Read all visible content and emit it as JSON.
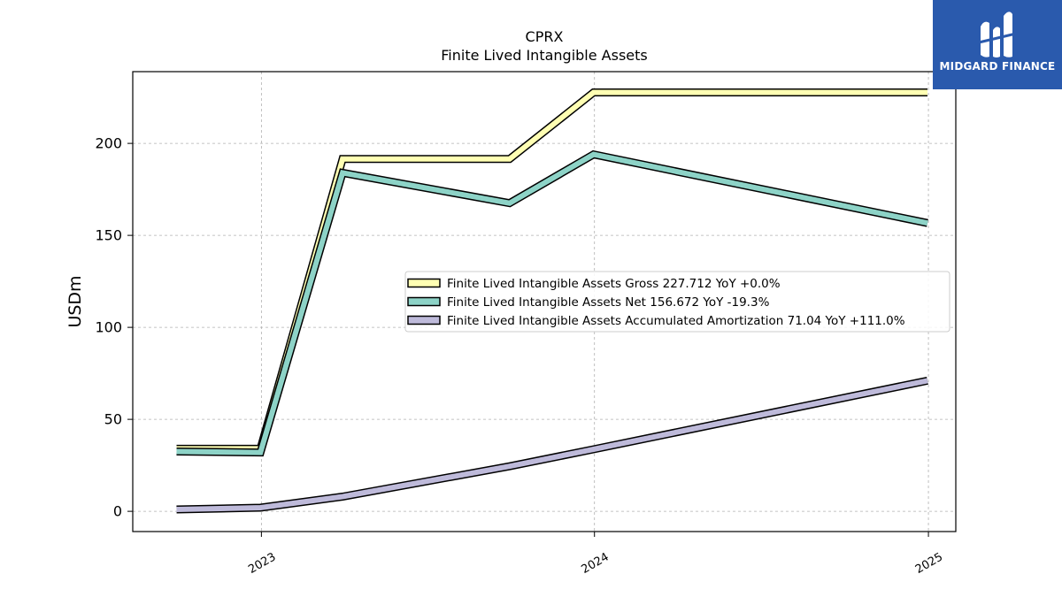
{
  "chart_data": {
    "type": "line",
    "title": "CPRX",
    "subtitle": "Finite Lived Intangible Assets",
    "ylabel": "USDm",
    "xlabel": "",
    "ylim": [
      -11,
      239
    ],
    "xlim": [
      "2022-08-13",
      "2025-01-31"
    ],
    "yticks": [
      0,
      50,
      100,
      150,
      200
    ],
    "xticks": [
      {
        "date": "2023-01-01",
        "label": "2023"
      },
      {
        "date": "2024-01-01",
        "label": "2024"
      },
      {
        "date": "2025-01-01",
        "label": "2025"
      }
    ],
    "grid": true,
    "legend_position": "center-right",
    "x": [
      "2022-09-30",
      "2022-12-31",
      "2023-03-31",
      "2023-09-30",
      "2023-12-31",
      "2024-12-31"
    ],
    "series": [
      {
        "name": "Finite Lived Intangible Assets Gross  227.712 YoY +0.0%",
        "color": "#ffffb3",
        "values": [
          34.0,
          34.0,
          191.5,
          191.5,
          227.712,
          227.712
        ]
      },
      {
        "name": "Finite Lived Intangible Assets Net  156.672 YoY -19.3%",
        "color": "#8dd3c7",
        "values": [
          32.5,
          32.0,
          184.0,
          167.5,
          194.0,
          156.672
        ]
      },
      {
        "name": "Finite Lived Intangible Assets Accumulated Amortization  71.04 YoY +111.0%",
        "color": "#bebada",
        "values": [
          1.0,
          2.0,
          8.0,
          24.5,
          33.7,
          71.04
        ]
      }
    ]
  },
  "logo": {
    "text": "MIDGARD FINANCE",
    "color": "#2a5aad"
  }
}
